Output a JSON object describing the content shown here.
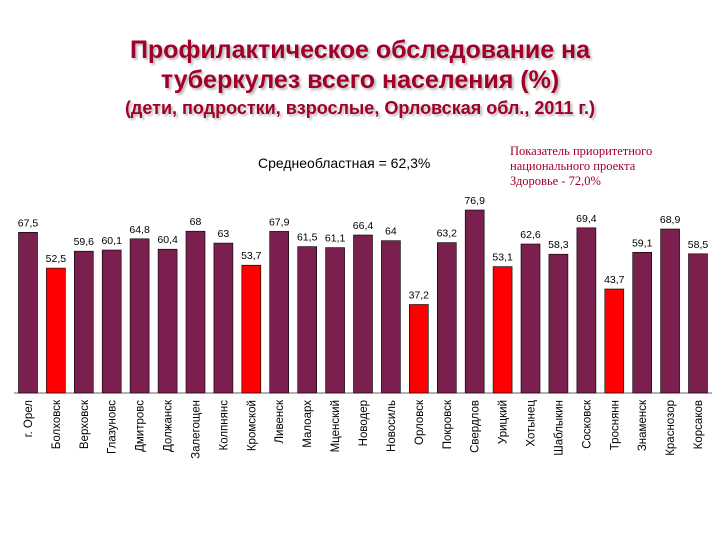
{
  "header": {
    "title_line1": "Профилактическое обследование на",
    "title_line2": "туберкулез всего населения (%)",
    "subtitle": "(дети, подростки, взрослые, Орловская обл., 2011 г.)"
  },
  "annotations": {
    "average": "Среднеобластная = 62,3%",
    "priority": "Показатель приоритетного\nнационального проекта\nЗдоровье -  72,0%"
  },
  "colors": {
    "default_bar": "#7a1f4e",
    "highlight_bar": "#ff0000"
  },
  "chart_data": {
    "type": "bar",
    "title": "Профилактическое обследование на туберкулез всего населения (%)",
    "ylim": [
      0,
      100
    ],
    "grid": false,
    "legend": "none",
    "categories": [
      "г. Орел",
      "Болховск",
      "Верховск",
      "Глазуновс",
      "Дмитровс",
      "Должанск",
      "Залегощен",
      "Колпнянс",
      "Кромской",
      "Ливенск",
      "Малоарх",
      "Мценский",
      "Новодер",
      "Новосиль",
      "Орловск",
      "Покровск",
      "Свердлов",
      "Урицкий",
      "Хотынец",
      "Шаблыкин",
      "Сосковск",
      "Троснянн",
      "Знаменск",
      "Краснозор",
      "Корсаков"
    ],
    "values": [
      67.5,
      52.5,
      59.6,
      60.1,
      64.8,
      60.4,
      68,
      63,
      53.7,
      67.9,
      61.5,
      61.1,
      66.4,
      64,
      37.2,
      63.2,
      76.9,
      53.1,
      62.6,
      58.3,
      69.4,
      43.7,
      59.1,
      68.9,
      58.5
    ],
    "value_labels": [
      "67,5",
      "52,5",
      "59,6",
      "60,1",
      "64,8",
      "60,4",
      "68",
      "63",
      "53,7",
      "67,9",
      "61,5",
      "61,1",
      "66,4",
      "64",
      "37,2",
      "63,2",
      "76,9",
      "53,1",
      "62,6",
      "58,3",
      "69,4",
      "43,7",
      "59,1",
      "68,9",
      "58,5"
    ],
    "highlighted": [
      "Болховск",
      "Кромской",
      "Орловск",
      "Урицкий",
      "Троснянн"
    ]
  }
}
